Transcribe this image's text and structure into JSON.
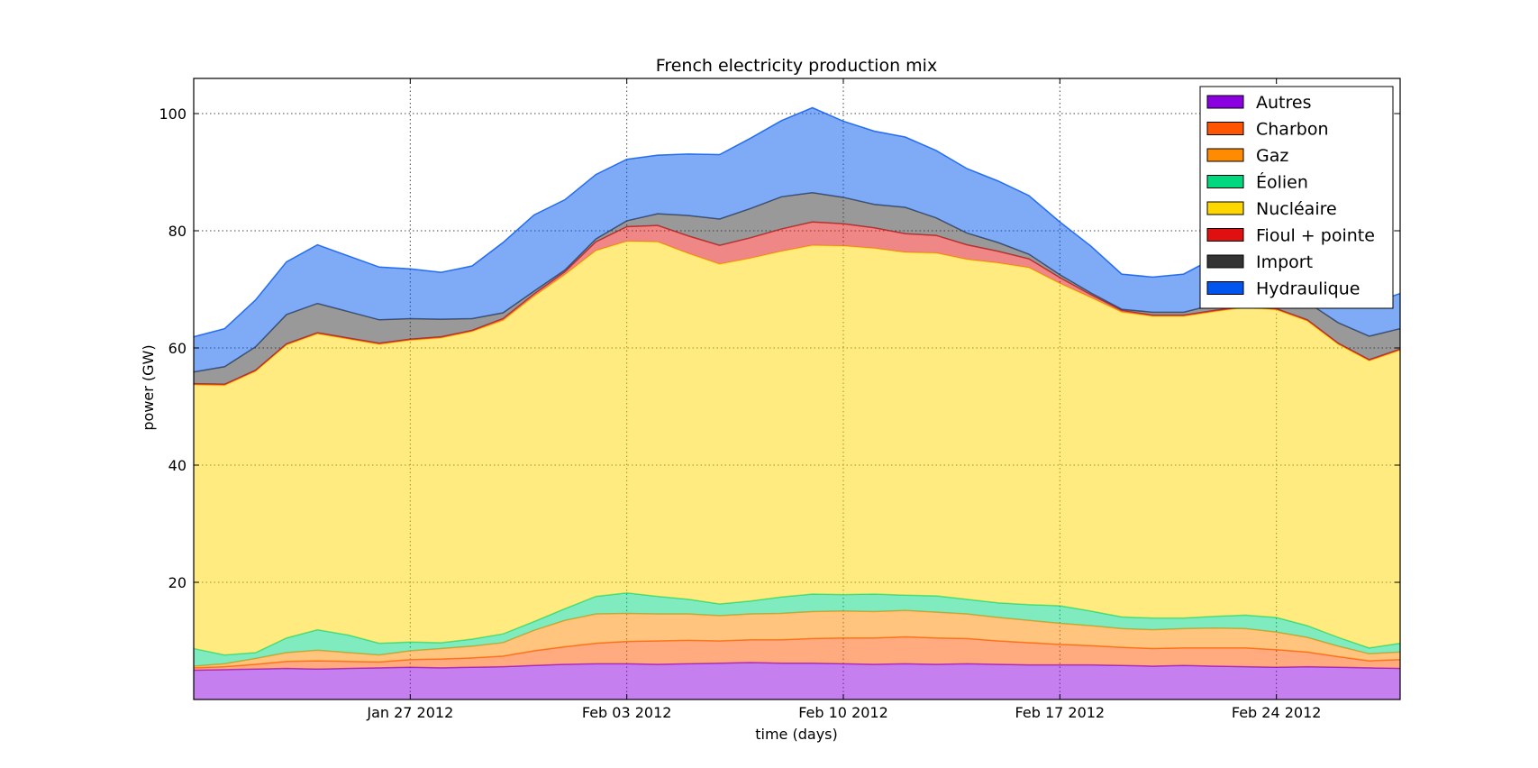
{
  "chart_data": {
    "type": "area",
    "stacked": true,
    "title": "French electricity production mix",
    "xlabel": "time (days)",
    "ylabel": "power (GW)",
    "x_start": "2012-01-20",
    "x_end": "2012-02-28",
    "xlim": [
      "2012-01-20",
      "2012-02-28"
    ],
    "ylim": [
      0,
      106
    ],
    "x_ticks": [
      {
        "date": "2012-01-27",
        "label": "Jan 27 2012"
      },
      {
        "date": "2012-02-03",
        "label": "Feb 03 2012"
      },
      {
        "date": "2012-02-10",
        "label": "Feb 10 2012"
      },
      {
        "date": "2012-02-17",
        "label": "Feb 17 2012"
      },
      {
        "date": "2012-02-24",
        "label": "Feb 24 2012"
      }
    ],
    "y_ticks": [
      20,
      40,
      60,
      80,
      100
    ],
    "grid": true,
    "legend_position": "top-right",
    "series": [
      {
        "name": "Autres",
        "color": "#8b00e0",
        "fill_opacity": 0.5,
        "values": [
          5.0,
          5.1,
          5.2,
          5.3,
          5.2,
          5.3,
          5.4,
          5.5,
          5.4,
          5.5,
          5.6,
          5.8,
          6.0,
          6.1,
          6.1,
          6.0,
          6.1,
          6.2,
          6.3,
          6.2,
          6.2,
          6.1,
          6.0,
          6.1,
          6.0,
          6.1,
          6.0,
          5.9,
          5.9,
          5.9,
          5.8,
          5.7,
          5.8,
          5.7,
          5.6,
          5.5,
          5.6,
          5.5,
          5.4,
          5.3
        ]
      },
      {
        "name": "Charbon",
        "color": "#ff5500",
        "fill_opacity": 0.5,
        "values": [
          0.4,
          0.5,
          0.8,
          1.2,
          1.4,
          1.2,
          1.0,
          1.3,
          1.5,
          1.6,
          1.8,
          2.5,
          3.0,
          3.5,
          3.8,
          4.0,
          4.0,
          3.8,
          3.9,
          4.0,
          4.2,
          4.4,
          4.5,
          4.6,
          4.5,
          4.3,
          4.0,
          3.8,
          3.5,
          3.3,
          3.1,
          3.0,
          3.0,
          3.1,
          3.2,
          3.0,
          2.5,
          1.8,
          1.2,
          1.5
        ]
      },
      {
        "name": "Gaz",
        "color": "#ff8c00",
        "fill_opacity": 0.5,
        "values": [
          0.3,
          0.5,
          1.0,
          1.5,
          1.8,
          1.5,
          1.2,
          1.5,
          1.8,
          2.0,
          2.3,
          3.5,
          4.5,
          5.0,
          4.8,
          4.6,
          4.5,
          4.3,
          4.4,
          4.5,
          4.6,
          4.6,
          4.5,
          4.5,
          4.4,
          4.2,
          4.0,
          3.8,
          3.6,
          3.4,
          3.2,
          3.2,
          3.3,
          3.4,
          3.3,
          3.0,
          2.5,
          1.8,
          1.2,
          1.3
        ]
      },
      {
        "name": "Éolien",
        "color": "#00d880",
        "fill_opacity": 0.5,
        "values": [
          3.0,
          1.5,
          1.0,
          2.5,
          3.5,
          3.0,
          2.0,
          1.5,
          1.0,
          1.2,
          1.5,
          1.5,
          2.0,
          3.0,
          3.5,
          3.0,
          2.5,
          2.0,
          2.2,
          2.8,
          3.0,
          2.8,
          3.0,
          2.6,
          2.8,
          2.5,
          2.5,
          2.7,
          3.0,
          2.5,
          2.0,
          2.0,
          1.8,
          2.0,
          2.3,
          2.5,
          2.0,
          1.5,
          1.0,
          1.5
        ]
      },
      {
        "name": "Nucléaire",
        "color": "#ffd700",
        "fill_opacity": 0.5,
        "values": [
          45.0,
          46.0,
          48.0,
          50.0,
          50.5,
          50.5,
          51.0,
          51.5,
          52.0,
          52.5,
          53.5,
          55.5,
          57.0,
          59.0,
          60.0,
          60.5,
          59.0,
          58.0,
          58.5,
          59.0,
          59.5,
          59.5,
          59.0,
          58.5,
          58.5,
          58.0,
          58.0,
          57.5,
          55.0,
          53.5,
          52.0,
          51.5,
          51.5,
          52.0,
          52.5,
          52.5,
          52.0,
          50.0,
          49.0,
          50.0
        ]
      },
      {
        "name": "Fioul + pointe",
        "color": "#e01010",
        "fill_opacity": 0.5,
        "values": [
          0.2,
          0.2,
          0.2,
          0.2,
          0.2,
          0.2,
          0.2,
          0.2,
          0.2,
          0.2,
          0.3,
          0.4,
          0.5,
          1.5,
          2.5,
          2.8,
          3.0,
          3.2,
          3.5,
          3.8,
          4.0,
          3.8,
          3.5,
          3.2,
          3.0,
          2.5,
          2.0,
          1.5,
          1.0,
          0.5,
          0.3,
          0.2,
          0.2,
          0.2,
          0.2,
          0.2,
          0.2,
          0.2,
          0.2,
          0.2
        ]
      },
      {
        "name": "Import",
        "color": "#333333",
        "fill_opacity": 0.5,
        "values": [
          2.0,
          3.0,
          4.0,
          5.0,
          5.0,
          4.5,
          4.0,
          3.5,
          3.0,
          2.0,
          1.0,
          0.5,
          0.3,
          0.5,
          1.0,
          2.0,
          3.5,
          4.5,
          5.0,
          5.5,
          5.0,
          4.5,
          4.0,
          4.5,
          3.0,
          2.0,
          1.5,
          0.8,
          0.5,
          0.3,
          0.2,
          0.5,
          0.5,
          1.0,
          1.5,
          2.0,
          3.0,
          3.5,
          4.0,
          3.5
        ]
      },
      {
        "name": "Hydraulique",
        "color": "#0055ee",
        "fill_opacity": 0.5,
        "values": [
          6.0,
          6.5,
          8.0,
          9.0,
          10.0,
          9.5,
          9.0,
          8.5,
          8.0,
          9.0,
          12.0,
          13.0,
          12.0,
          11.0,
          10.5,
          10.0,
          10.5,
          11.0,
          12.0,
          13.0,
          14.5,
          13.0,
          12.5,
          12.0,
          11.5,
          11.0,
          10.5,
          10.0,
          9.0,
          8.0,
          6.0,
          6.0,
          6.5,
          8.0,
          9.5,
          9.0,
          7.0,
          6.0,
          5.5,
          6.0
        ]
      }
    ]
  }
}
